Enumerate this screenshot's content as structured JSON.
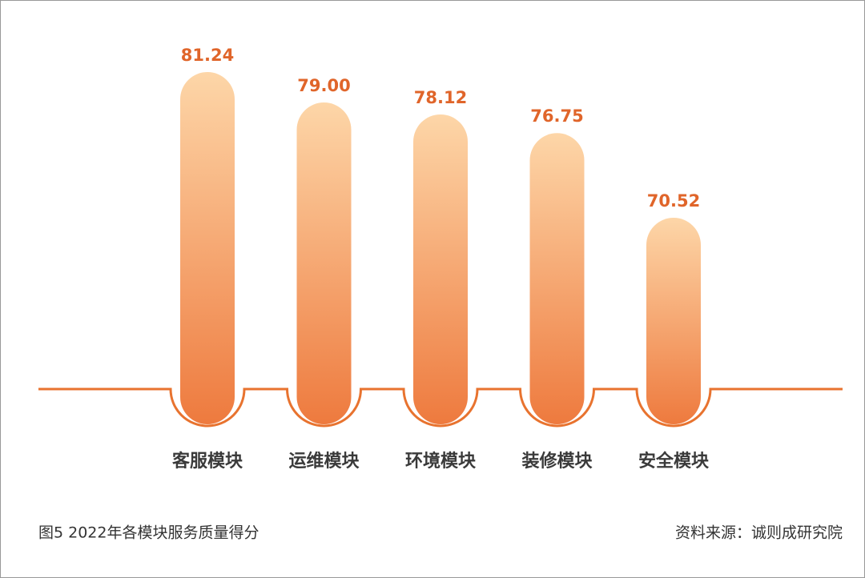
{
  "chart_data": {
    "type": "bar",
    "categories": [
      "客服模块",
      "运维模块",
      "环境模块",
      "装修模块",
      "安全模块"
    ],
    "values": [
      81.24,
      79.0,
      78.12,
      76.75,
      70.52
    ],
    "value_labels": [
      "81.24",
      "79.00",
      "78.12",
      "76.75",
      "70.52"
    ],
    "color": "#ee7a3e",
    "caption": "图5 2022年各模块服务质量得分",
    "source": "资料来源：诚则成研究院"
  }
}
